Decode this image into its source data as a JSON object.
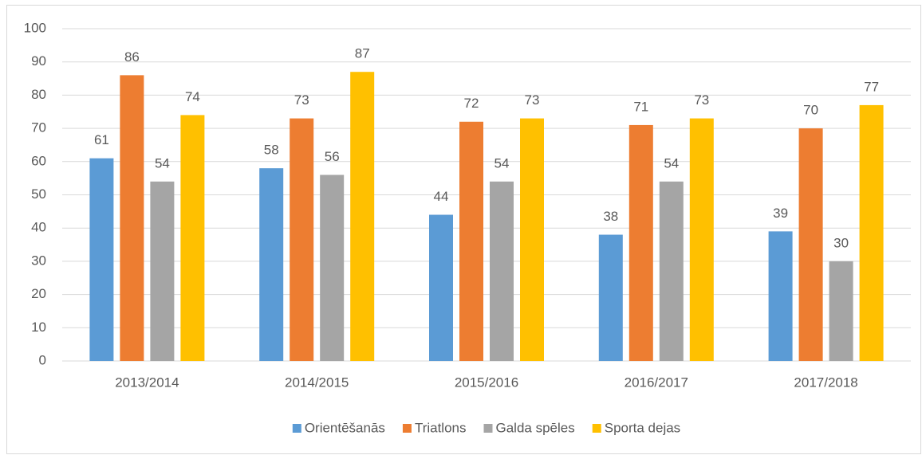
{
  "chart_data": {
    "type": "bar",
    "categories": [
      "2013/2014",
      "2014/2015",
      "2015/2016",
      "2016/2017",
      "2017/2018"
    ],
    "series": [
      {
        "name": "Orientēšanās",
        "color": "#5b9bd5",
        "values": [
          61,
          58,
          44,
          38,
          39
        ]
      },
      {
        "name": "Triatlons",
        "color": "#ed7d31",
        "values": [
          86,
          73,
          72,
          71,
          70
        ]
      },
      {
        "name": "Galda spēles",
        "color": "#a5a5a5",
        "values": [
          54,
          56,
          54,
          54,
          30
        ]
      },
      {
        "name": "Sporta dejas",
        "color": "#ffc000",
        "values": [
          74,
          87,
          73,
          73,
          77
        ]
      }
    ],
    "ylim": [
      0,
      100
    ],
    "yticks": [
      0,
      10,
      20,
      30,
      40,
      50,
      60,
      70,
      80,
      90,
      100
    ],
    "grid": true,
    "legend": "bottom"
  }
}
